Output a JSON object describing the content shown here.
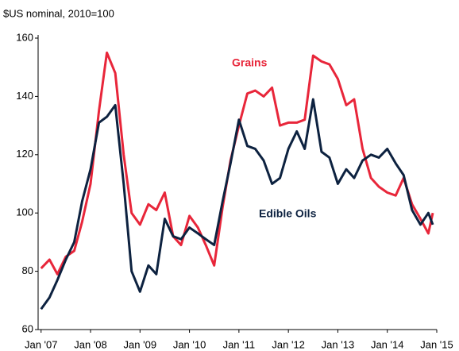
{
  "chart_data": {
    "type": "line",
    "title": "$US nominal, 2010=100",
    "annotations": [
      "Grains",
      "Edible Oils"
    ],
    "x": [
      2007,
      2007.17,
      2007.33,
      2007.5,
      2007.67,
      2007.83,
      2008,
      2008.17,
      2008.33,
      2008.5,
      2008.67,
      2008.83,
      2009,
      2009.17,
      2009.33,
      2009.5,
      2009.67,
      2009.83,
      2010,
      2010.17,
      2010.33,
      2010.5,
      2010.67,
      2010.83,
      2011,
      2011.17,
      2011.33,
      2011.5,
      2011.67,
      2011.83,
      2012,
      2012.17,
      2012.33,
      2012.5,
      2012.67,
      2012.83,
      2013,
      2013.17,
      2013.33,
      2013.5,
      2013.67,
      2013.83,
      2014,
      2014.17,
      2014.33,
      2014.5,
      2014.67,
      2014.83,
      2014.92
    ],
    "series": [
      {
        "name": "Grains",
        "color": "#e8263a",
        "values": [
          81,
          84,
          79,
          85,
          87,
          97,
          110,
          135,
          155,
          148,
          120,
          100,
          96,
          103,
          101,
          107,
          92,
          89,
          99,
          95,
          89,
          82,
          102,
          118,
          130,
          141,
          142,
          140,
          143,
          130,
          131,
          131,
          132,
          154,
          152,
          151,
          146,
          137,
          139,
          122,
          112,
          109,
          107,
          106,
          112,
          103,
          98,
          93,
          100
        ]
      },
      {
        "name": "Edible Oils",
        "color": "#0d2240",
        "values": [
          67,
          71,
          77,
          84,
          90,
          104,
          115,
          131,
          133,
          137,
          110,
          80,
          73,
          82,
          79,
          98,
          92,
          91,
          95,
          93,
          91,
          89,
          104,
          117,
          132,
          123,
          122,
          118,
          110,
          112,
          122,
          128,
          122,
          139,
          121,
          119,
          110,
          115,
          112,
          118,
          120,
          119,
          122,
          117,
          113,
          101,
          96,
          100,
          96
        ]
      }
    ],
    "xlim": [
      2006.94,
      2015.0
    ],
    "xticks": [
      {
        "value": 2007,
        "label": "Jan '07"
      },
      {
        "value": 2008,
        "label": "Jan '08"
      },
      {
        "value": 2009,
        "label": "Jan '09"
      },
      {
        "value": 2010,
        "label": "Jan '10"
      },
      {
        "value": 2011,
        "label": "Jan '11"
      },
      {
        "value": 2012,
        "label": "Jan '12"
      },
      {
        "value": 2013,
        "label": "Jan '13"
      },
      {
        "value": 2014,
        "label": "Jan '14"
      },
      {
        "value": 2015,
        "label": "Jan '15"
      }
    ],
    "ylim": [
      60,
      160
    ],
    "yticks": [
      60,
      80,
      100,
      120,
      140,
      160
    ],
    "grid": false
  }
}
